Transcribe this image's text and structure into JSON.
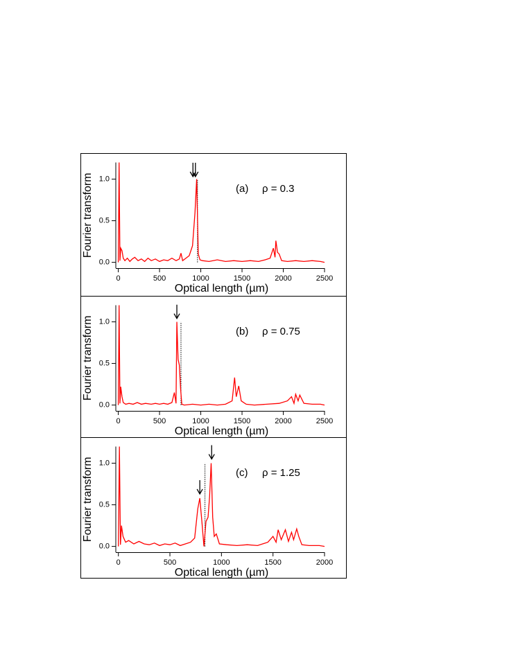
{
  "chart_data": [
    {
      "type": "line",
      "label": "(a)",
      "annotation": "ρ = 0.3",
      "xlabel": "Optical length (µm)",
      "ylabel": "Fourier transform",
      "color": "#ff0000",
      "xlim": [
        -30,
        2500
      ],
      "ylim": [
        -0.07,
        1.2
      ],
      "xticks": [
        0,
        500,
        1000,
        1500,
        2000,
        2500
      ],
      "yticks": [
        {
          "value": 0,
          "label": "0.0"
        },
        {
          "value": 0.5,
          "label": "0.5"
        },
        {
          "value": 1,
          "label": "1.0"
        }
      ],
      "x": [
        0,
        10,
        20,
        30,
        45,
        60,
        80,
        110,
        140,
        170,
        200,
        240,
        280,
        320,
        360,
        400,
        450,
        500,
        550,
        600,
        650,
        700,
        740,
        760,
        780,
        820,
        860,
        900,
        930,
        950,
        970,
        990,
        1020,
        1100,
        1200,
        1300,
        1400,
        1500,
        1600,
        1700,
        1780,
        1840,
        1880,
        1900,
        1910,
        1930,
        1950,
        1980,
        2050,
        2150,
        2250,
        2350,
        2450,
        2500
      ],
      "values": [
        0.0,
        1.2,
        0.02,
        0.17,
        0.14,
        0.05,
        0.02,
        0.05,
        0.01,
        0.04,
        0.06,
        0.02,
        0.04,
        0.01,
        0.05,
        0.02,
        0.04,
        0.01,
        0.03,
        0.02,
        0.05,
        0.02,
        0.04,
        0.11,
        0.02,
        0.05,
        0.08,
        0.2,
        0.6,
        1.0,
        0.1,
        0.03,
        0.02,
        0.01,
        0.03,
        0.01,
        0.02,
        0.01,
        0.02,
        0.01,
        0.03,
        0.05,
        0.17,
        0.06,
        0.26,
        0.12,
        0.1,
        0.02,
        0.01,
        0.02,
        0.01,
        0.02,
        0.01,
        0.0
      ],
      "vline": {
        "x": 960,
        "y": 1.0
      },
      "arrows": [
        {
          "x": 905,
          "y": 1.03
        },
        {
          "x": 935,
          "y": 1.03
        }
      ]
    },
    {
      "type": "line",
      "label": "(b)",
      "annotation": "ρ = 0.75",
      "xlabel": "Optical length (µm)",
      "ylabel": "Fourier transform",
      "color": "#ff0000",
      "xlim": [
        -30,
        2500
      ],
      "ylim": [
        -0.07,
        1.2
      ],
      "xticks": [
        0,
        500,
        1000,
        1500,
        2000,
        2500
      ],
      "yticks": [
        {
          "value": 0,
          "label": "0.0"
        },
        {
          "value": 0.5,
          "label": "0.5"
        },
        {
          "value": 1,
          "label": "1.0"
        }
      ],
      "x": [
        0,
        10,
        20,
        30,
        45,
        60,
        90,
        130,
        180,
        230,
        280,
        330,
        400,
        450,
        500,
        550,
        600,
        650,
        680,
        700,
        710,
        725,
        740,
        755,
        770,
        800,
        900,
        1000,
        1100,
        1200,
        1300,
        1380,
        1410,
        1430,
        1460,
        1490,
        1550,
        1650,
        1800,
        1950,
        2050,
        2100,
        2130,
        2150,
        2180,
        2200,
        2250,
        2350,
        2450,
        2500
      ],
      "values": [
        0.0,
        1.2,
        0.02,
        0.22,
        0.1,
        0.03,
        0.01,
        0.02,
        0.01,
        0.03,
        0.01,
        0.02,
        0.01,
        0.02,
        0.01,
        0.02,
        0.01,
        0.03,
        0.15,
        0.02,
        1.0,
        0.55,
        0.48,
        0.2,
        0.01,
        0.0,
        0.01,
        0.0,
        0.01,
        0.0,
        0.01,
        0.05,
        0.33,
        0.1,
        0.23,
        0.05,
        0.01,
        0.0,
        0.01,
        0.02,
        0.05,
        0.1,
        0.02,
        0.13,
        0.05,
        0.12,
        0.02,
        0.01,
        0.01,
        0.0
      ],
      "vline": {
        "x": 760,
        "y": 1.0
      },
      "arrows": [
        {
          "x": 710,
          "y": 1.04
        }
      ]
    },
    {
      "type": "line",
      "label": "(c)",
      "annotation": "ρ = 1.25",
      "xlabel": "Optical length (µm)",
      "ylabel": "Fourier transform",
      "color": "#ff0000",
      "xlim": [
        -25,
        2000
      ],
      "ylim": [
        -0.07,
        1.2
      ],
      "xticks": [
        0,
        500,
        1000,
        1500,
        2000
      ],
      "yticks": [
        {
          "value": 0,
          "label": "0.0"
        },
        {
          "value": 0.5,
          "label": "0.5"
        },
        {
          "value": 1,
          "label": "1.0"
        }
      ],
      "x": [
        0,
        10,
        20,
        30,
        45,
        70,
        100,
        150,
        200,
        250,
        300,
        350,
        400,
        450,
        500,
        550,
        600,
        650,
        700,
        740,
        770,
        790,
        810,
        830,
        850,
        870,
        885,
        900,
        915,
        930,
        950,
        980,
        1050,
        1150,
        1250,
        1350,
        1450,
        1500,
        1530,
        1550,
        1580,
        1620,
        1650,
        1680,
        1700,
        1730,
        1750,
        1780,
        1850,
        1950,
        2000
      ],
      "values": [
        0.0,
        1.2,
        0.02,
        0.25,
        0.12,
        0.05,
        0.07,
        0.03,
        0.06,
        0.03,
        0.02,
        0.04,
        0.01,
        0.03,
        0.02,
        0.04,
        0.01,
        0.03,
        0.05,
        0.1,
        0.45,
        0.58,
        0.3,
        0.0,
        0.3,
        0.35,
        0.6,
        1.0,
        0.35,
        0.12,
        0.15,
        0.03,
        0.02,
        0.01,
        0.02,
        0.01,
        0.05,
        0.12,
        0.05,
        0.2,
        0.08,
        0.2,
        0.06,
        0.17,
        0.08,
        0.21,
        0.12,
        0.02,
        0.01,
        0.01,
        0.0
      ],
      "vline": {
        "x": 840,
        "y": 1.0
      },
      "arrows": [
        {
          "x": 790,
          "y": 0.63
        },
        {
          "x": 905,
          "y": 1.05
        }
      ]
    }
  ]
}
